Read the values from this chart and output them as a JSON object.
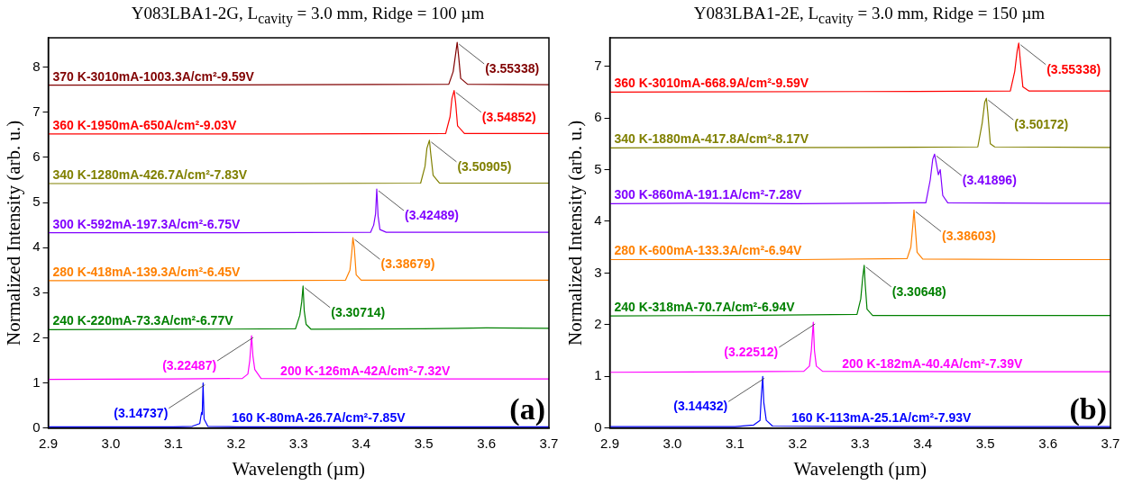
{
  "chart_data": [
    {
      "type": "line",
      "title": "Y083LBA1-2G, L$_{cavity}$ = 3.0 mm, Ridge = 100 µm",
      "xlabel": "Wavelength (µm)",
      "ylabel": "Normalized Intensity (arb. u.)",
      "marker": "none",
      "line_style": "solid",
      "xlim": [
        2.9,
        3.7
      ],
      "xticks": [
        2.9,
        {
          "value": 3,
          "label": "3.0"
        },
        3.1,
        3.2,
        3.3,
        3.4,
        3.5,
        3.6,
        3.7
      ],
      "ylim": [
        0,
        8.65
      ],
      "yticks": [
        0,
        1,
        2,
        3,
        4,
        5,
        6,
        7,
        8
      ],
      "series": [
        {
          "name": "160 K-80mA-26.7A/cm²-7.85V",
          "color": "#0000ff",
          "x": [
            2.9,
            3.1,
            3.13,
            3.142,
            3.145,
            3.146,
            3.14737,
            3.149,
            3.155,
            3.2,
            3.5,
            3.7
          ],
          "values": [
            0.03,
            0.03,
            0.04,
            0.1,
            0.35,
            0.3,
            1.0,
            0.2,
            0.04,
            0.03,
            0.03,
            0.03
          ]
        },
        {
          "name": "200 K-126mA-42A/cm²-7.32V",
          "color": "#ff00ff",
          "x": [
            2.9,
            3.1,
            3.21,
            3.219,
            3.222,
            3.22487,
            3.227,
            3.23,
            3.24,
            3.5,
            3.7
          ],
          "values": [
            1.08,
            1.09,
            1.1,
            1.2,
            1.5,
            2.05,
            1.6,
            1.3,
            1.1,
            1.09,
            1.09
          ]
        },
        {
          "name": "240 K-220mA-73.3A/cm²-6.77V",
          "color": "#008000",
          "x": [
            2.9,
            3.1,
            3.295,
            3.302,
            3.305,
            3.30714,
            3.309,
            3.312,
            3.32,
            3.5,
            3.6,
            3.7
          ],
          "values": [
            2.18,
            2.19,
            2.2,
            2.5,
            2.8,
            3.15,
            2.6,
            2.3,
            2.19,
            2.2,
            2.22,
            2.21
          ]
        },
        {
          "name": "280 K-418mA-139.3A/cm²-6.45V",
          "color": "#ff8000",
          "x": [
            2.9,
            3.2,
            3.375,
            3.382,
            3.385,
            3.38679,
            3.389,
            3.392,
            3.4,
            3.6,
            3.7
          ],
          "values": [
            3.27,
            3.27,
            3.28,
            3.5,
            3.9,
            4.22,
            4.0,
            3.4,
            3.28,
            3.28,
            3.28
          ]
        },
        {
          "name": "300 K-592mA-197.3A/cm²-6.75V",
          "color": "#8000ff",
          "x": [
            2.9,
            3.2,
            3.415,
            3.42,
            3.423,
            3.42489,
            3.427,
            3.43,
            3.44,
            3.6,
            3.7
          ],
          "values": [
            4.33,
            4.33,
            4.34,
            4.5,
            4.75,
            5.3,
            4.7,
            4.4,
            4.34,
            4.34,
            4.34
          ]
        },
        {
          "name": "340 K-1280mA-426.7A/cm²-7.83V",
          "color": "#808000",
          "x": [
            2.9,
            3.3,
            3.495,
            3.502,
            3.505,
            3.50905,
            3.511,
            3.515,
            3.525,
            3.7
          ],
          "values": [
            5.42,
            5.42,
            5.43,
            5.8,
            6.2,
            6.38,
            6.1,
            5.6,
            5.43,
            5.43
          ]
        },
        {
          "name": "360 K-1950mA-650A/cm²-9.03V",
          "color": "#ff0000",
          "x": [
            2.9,
            3.3,
            3.535,
            3.542,
            3.545,
            3.54852,
            3.551,
            3.554,
            3.565,
            3.7
          ],
          "values": [
            6.52,
            6.52,
            6.53,
            6.9,
            7.3,
            7.48,
            7.2,
            6.7,
            6.53,
            6.53
          ]
        },
        {
          "name": "370 K-3010mA-1003.3A/cm²-9.59V",
          "color": "#800000",
          "x": [
            2.9,
            3.3,
            3.54,
            3.547,
            3.551,
            3.55338,
            3.556,
            3.559,
            3.57,
            3.7
          ],
          "values": [
            7.6,
            7.61,
            7.62,
            7.9,
            8.3,
            8.55,
            8.2,
            7.75,
            7.62,
            7.61
          ]
        }
      ],
      "annotations": [
        {
          "text": "(3.14737)",
          "x": 3.14737,
          "y": 1.0
        },
        {
          "text": "(3.22487)",
          "x": 3.22487,
          "y": 2.05
        },
        {
          "text": "(3.30714)",
          "x": 3.30714,
          "y": 3.15
        },
        {
          "text": "(3.38679)",
          "x": 3.38679,
          "y": 4.22
        },
        {
          "text": "(3.42489)",
          "x": 3.42489,
          "y": 5.3
        },
        {
          "text": "(3.50905)",
          "x": 3.50905,
          "y": 6.38
        },
        {
          "text": "(3.54852)",
          "x": 3.54852,
          "y": 7.48
        },
        {
          "text": "(3.55338)",
          "x": 3.55338,
          "y": 8.55
        },
        "(a)"
      ]
    },
    {
      "type": "line",
      "title": "Y083LBA1-2E, L$_{cavity}$ = 3.0 mm, Ridge = 150 µm",
      "xlabel": "Wavelength (µm)",
      "ylabel": "Normalized Intensity (arb. u.)",
      "marker": "none",
      "line_style": "solid",
      "xlim": [
        2.9,
        3.7
      ],
      "xticks": [
        2.9,
        {
          "value": 3,
          "label": "3.0"
        },
        3.1,
        3.2,
        3.3,
        3.4,
        3.5,
        3.6,
        3.7
      ],
      "ylim": [
        0,
        7.55
      ],
      "yticks": [
        0,
        1,
        2,
        3,
        4,
        5,
        6,
        7
      ],
      "series": [
        {
          "name": "160 K-113mA-25.1A/cm²-7.93V",
          "color": "#0000ff",
          "x": [
            2.9,
            3.1,
            3.13,
            3.14,
            3.142,
            3.14432,
            3.146,
            3.15,
            3.16,
            3.3,
            3.7
          ],
          "values": [
            0.03,
            0.03,
            0.06,
            0.15,
            0.6,
            1.0,
            0.5,
            0.15,
            0.04,
            0.03,
            0.03
          ]
        },
        {
          "name": "200 K-182mA-40.4A/cm²-7.39V",
          "color": "#ff00ff",
          "x": [
            2.9,
            3.1,
            3.21,
            3.219,
            3.222,
            3.22512,
            3.227,
            3.23,
            3.24,
            3.5,
            3.7
          ],
          "values": [
            1.08,
            1.09,
            1.1,
            1.2,
            1.5,
            2.05,
            1.5,
            1.2,
            1.1,
            1.09,
            1.09
          ]
        },
        {
          "name": "240 K-318mA-70.7A/cm²-6.94V",
          "color": "#008000",
          "x": [
            2.9,
            3.1,
            3.295,
            3.301,
            3.304,
            3.30648,
            3.308,
            3.311,
            3.32,
            3.5,
            3.7
          ],
          "values": [
            2.17,
            2.18,
            2.2,
            2.5,
            2.9,
            3.15,
            2.8,
            2.3,
            2.18,
            2.18,
            2.18
          ]
        },
        {
          "name": "280 K-600mA-133.3A/cm²-6.94V",
          "color": "#ff8000",
          "x": [
            2.9,
            3.2,
            3.375,
            3.381,
            3.384,
            3.38603,
            3.388,
            3.391,
            3.4,
            3.6,
            3.7
          ],
          "values": [
            3.26,
            3.26,
            3.28,
            3.5,
            3.9,
            4.22,
            3.9,
            3.4,
            3.27,
            3.26,
            3.26
          ]
        },
        {
          "name": "300 K-860mA-191.1A/cm²-7.28V",
          "color": "#8000ff",
          "x": [
            2.9,
            3.05,
            3.2,
            3.405,
            3.412,
            3.416,
            3.41896,
            3.422,
            3.425,
            3.428,
            3.432,
            3.44,
            3.6,
            3.7
          ],
          "values": [
            4.34,
            4.35,
            4.34,
            4.36,
            4.8,
            5.2,
            5.3,
            5.1,
            4.9,
            5.0,
            4.5,
            4.36,
            4.35,
            4.35
          ]
        },
        {
          "name": "340 K-1880mA-417.8A/cm²-8.17V",
          "color": "#808000",
          "x": [
            2.9,
            3.3,
            3.488,
            3.495,
            3.499,
            3.50172,
            3.504,
            3.508,
            3.515,
            3.7
          ],
          "values": [
            5.42,
            5.43,
            5.44,
            5.9,
            6.3,
            6.38,
            6.1,
            5.5,
            5.44,
            5.43
          ]
        },
        {
          "name": "360 K-3010mA-668.9A/cm²-9.59V",
          "color": "#ff0000",
          "x": [
            2.9,
            3.3,
            3.54,
            3.547,
            3.551,
            3.55338,
            3.556,
            3.56,
            3.57,
            3.7
          ],
          "values": [
            6.5,
            6.51,
            6.52,
            6.9,
            7.3,
            7.45,
            7.1,
            6.6,
            6.52,
            6.52
          ]
        }
      ],
      "annotations": [
        {
          "text": "(3.14432)",
          "x": 3.14432,
          "y": 1.0
        },
        {
          "text": "(3.22512)",
          "x": 3.22512,
          "y": 2.05
        },
        {
          "text": "(3.30648)",
          "x": 3.30648,
          "y": 3.15
        },
        {
          "text": "(3.38603)",
          "x": 3.38603,
          "y": 4.22
        },
        {
          "text": "(3.41896)",
          "x": 3.41896,
          "y": 5.3
        },
        {
          "text": "(3.50172)",
          "x": 3.50172,
          "y": 6.38
        },
        {
          "text": "(3.55338)",
          "x": 3.55338,
          "y": 7.45
        },
        "(b)"
      ]
    }
  ]
}
